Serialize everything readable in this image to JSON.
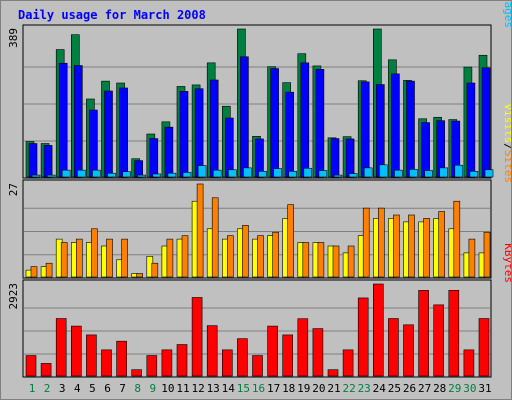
{
  "chart_data": {
    "type": "bar",
    "title": "Daily usage for March 2008",
    "categories": [
      "1",
      "2",
      "3",
      "4",
      "5",
      "6",
      "7",
      "8",
      "9",
      "10",
      "11",
      "12",
      "13",
      "14",
      "15",
      "16",
      "17",
      "18",
      "19",
      "20",
      "21",
      "22",
      "23",
      "24",
      "25",
      "26",
      "27",
      "28",
      "29",
      "30",
      "31"
    ],
    "weekend_days": [
      1,
      2,
      8,
      9,
      15,
      16,
      22,
      23,
      29,
      30
    ],
    "panels": [
      {
        "id": "hits-files-pages",
        "ymax_label": "389",
        "ylim": [
          0,
          389
        ],
        "right_label": [
          "Pages",
          "Files",
          "Hits"
        ],
        "series": [
          {
            "name": "Hits",
            "color": "#008040",
            "values": [
              93,
              88,
              335,
              374,
              205,
              252,
              247,
              48,
              113,
              145,
              238,
              242,
              300,
              186,
              389,
              107,
              290,
              248,
              324,
              292,
              103,
              106,
              253,
              389,
              308,
              254,
              153,
              157,
              151,
              289,
              320
            ]
          },
          {
            "name": "Files",
            "color": "#0000ff",
            "values": [
              88,
              83,
              299,
              293,
              176,
              226,
              234,
              43,
              101,
              131,
              225,
              232,
              255,
              155,
              316,
              100,
              285,
              223,
              300,
              283,
              101,
              100,
              250,
              243,
              271,
              252,
              143,
              148,
              147,
              247,
              287
            ]
          },
          {
            "name": "Pages",
            "color": "#00c0ff",
            "values": [
              5,
              5,
              18,
              18,
              18,
              10,
              14,
              5,
              8,
              10,
              12,
              30,
              18,
              19,
              24,
              15,
              22,
              15,
              23,
              17,
              5,
              9,
              24,
              32,
              18,
              20,
              17,
              24,
              31,
              15,
              19
            ]
          }
        ]
      },
      {
        "id": "visits-sites",
        "ymax_label": "27",
        "ylim": [
          0,
          27
        ],
        "right_label": [
          "Sites",
          "Visits"
        ],
        "series": [
          {
            "name": "Visits",
            "color": "#ffff00",
            "values": [
              2,
              3,
              11,
              10,
              10,
              9,
              5,
              1,
              6,
              9,
              11,
              22,
              14,
              11,
              14,
              11,
              12,
              17,
              10,
              10,
              9,
              7,
              12,
              17,
              17,
              16,
              16,
              17,
              14,
              7,
              7
            ]
          },
          {
            "name": "Sites",
            "color": "#ff8000",
            "values": [
              3,
              4,
              10,
              11,
              14,
              11,
              11,
              1,
              4,
              11,
              12,
              27,
              23,
              12,
              15,
              12,
              13,
              21,
              10,
              10,
              9,
              9,
              20,
              20,
              18,
              18,
              17,
              19,
              22,
              11,
              13
            ]
          }
        ]
      },
      {
        "id": "kbytes",
        "ymax_label": "2923",
        "ylim": [
          0,
          2923
        ],
        "right_label": [
          "KBytes"
        ],
        "series": [
          {
            "name": "KBytes",
            "color": "#ff0000",
            "values": [
              650,
              400,
              1826,
              1586,
              1305,
              830,
              1106,
              200,
              650,
              830,
              1000,
              2495,
              1600,
              830,
              1186,
              650,
              1586,
              1305,
              1820,
              1506,
              200,
              830,
              2480,
              2923,
              1826,
              1626,
              2720,
              2260,
              2723,
              830,
              1826
            ]
          }
        ]
      }
    ],
    "colors": {
      "background": "#c0c0c0",
      "border_light": "#ffffff",
      "border_dark": "#808080",
      "plot_background": "#c0c0c0",
      "grid": "#808080",
      "title_text": "#0000ff",
      "axis_text": "#000000",
      "day_weekday": "#000000",
      "day_weekend": "#008040",
      "separator": "#000000"
    }
  }
}
